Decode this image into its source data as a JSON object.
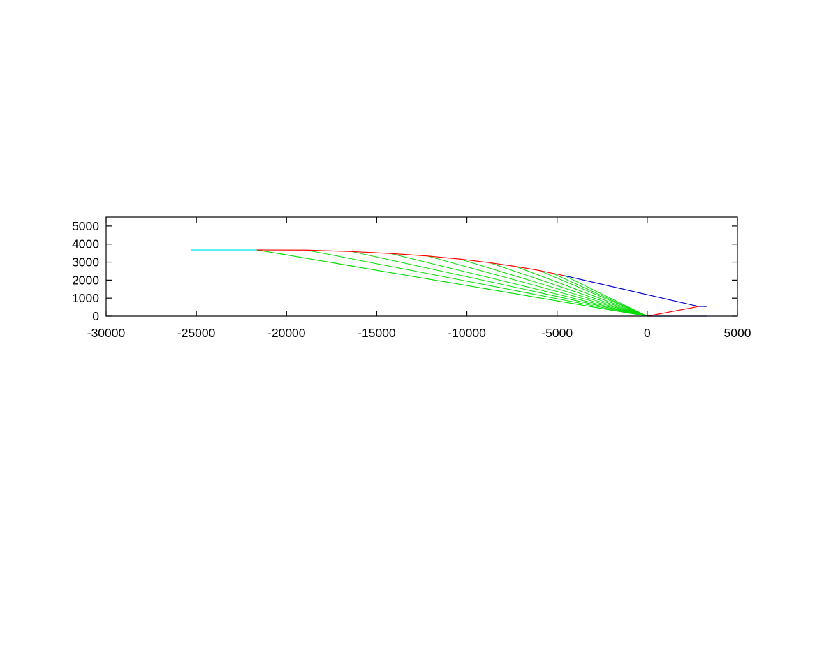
{
  "chart_data": {
    "type": "line",
    "title": "",
    "xlabel": "",
    "ylabel": "",
    "xlim": [
      -30000,
      5000
    ],
    "ylim": [
      0,
      5500
    ],
    "x_ticks": [
      -30000,
      -25000,
      -20000,
      -15000,
      -10000,
      -5000,
      0,
      5000
    ],
    "x_tick_labels": [
      "-30000",
      "-25000",
      "-20000",
      "-15000",
      "-10000",
      "-5000",
      "0",
      "5000"
    ],
    "y_ticks": [
      0,
      1000,
      2000,
      3000,
      4000,
      5000
    ],
    "y_tick_labels": [
      "0",
      "1000",
      "2000",
      "3000",
      "4000",
      "5000"
    ],
    "grid": false,
    "legend": "none",
    "series": [
      {
        "color": "#00e5e5",
        "points": [
          [
            -25300,
            3680
          ],
          [
            -21650,
            3680
          ]
        ]
      },
      {
        "color": "#ff0000",
        "points": [
          [
            -21650,
            3680
          ],
          [
            -18900,
            3670
          ],
          [
            -16400,
            3590
          ],
          [
            -14250,
            3480
          ],
          [
            -12200,
            3340
          ],
          [
            -10400,
            3170
          ],
          [
            -8750,
            2970
          ],
          [
            -7300,
            2760
          ],
          [
            -6000,
            2540
          ],
          [
            -4600,
            2250
          ]
        ]
      },
      {
        "color": "#0000cc",
        "points": [
          [
            -4600,
            2250
          ],
          [
            2850,
            540
          ],
          [
            3300,
            540
          ]
        ]
      },
      {
        "color": "#ff0000",
        "points": [
          [
            0,
            0
          ],
          [
            2850,
            540
          ]
        ]
      },
      {
        "color": "#0000cc",
        "points": [
          [
            0,
            0
          ],
          [
            3300,
            0
          ]
        ]
      }
    ],
    "fans": [
      {
        "color": "#00dd00",
        "origin": [
          0,
          0
        ],
        "endpoints": [
          [
            -21650,
            3680
          ],
          [
            -21650,
            3680
          ],
          [
            -18900,
            3670
          ],
          [
            -16400,
            3590
          ],
          [
            -14250,
            3480
          ],
          [
            -12200,
            3340
          ],
          [
            -10400,
            3170
          ],
          [
            -8750,
            2970
          ],
          [
            -7300,
            2760
          ],
          [
            -6000,
            2540
          ],
          [
            -5300,
            2400
          ],
          [
            -4600,
            2250
          ]
        ]
      }
    ]
  }
}
